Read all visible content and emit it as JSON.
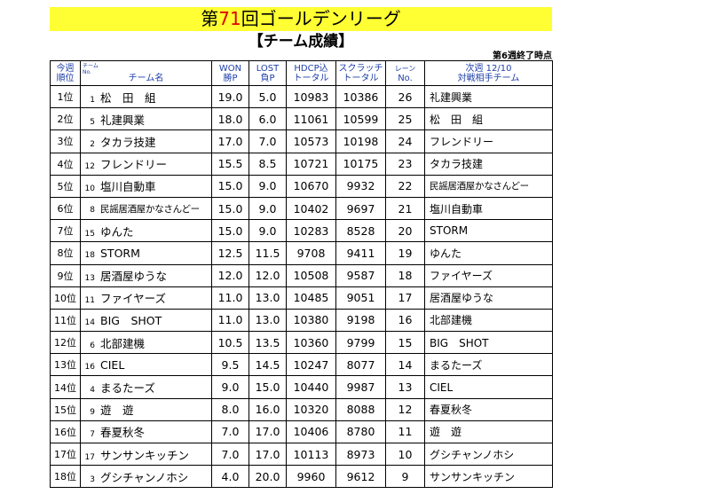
{
  "title": {
    "prefix": "第",
    "number": "71",
    "suffix": "回ゴールデンリーグ"
  },
  "subtitle": "【チーム成績】",
  "as_of": "第6週終了時点",
  "headers": {
    "rank_line1": "今週",
    "rank_line2": "順位",
    "team_small1": "チーム",
    "team_small2": "No.",
    "team_main": "チーム名",
    "won_line1": "WON",
    "won_line2": "勝P",
    "lost_line1": "LOST",
    "lost_line2": "負P",
    "hdcp_line1": "HDCP込",
    "hdcp_line2": "トータル",
    "scratch_line1": "スクラッチ",
    "scratch_line2": "トータル",
    "lane_line1": "レーン",
    "lane_line2": "No.",
    "next_line1": "次週 12/10",
    "next_line2": "対戦相手チーム"
  },
  "rows": [
    {
      "rank": "1位",
      "no": "1",
      "team": "松　田　組",
      "won": "19.0",
      "lost": "5.0",
      "hdcp": "10983",
      "scratch": "10386",
      "lane": "26",
      "opponent": "礼建興業"
    },
    {
      "rank": "2位",
      "no": "5",
      "team": "礼建興業",
      "won": "18.0",
      "lost": "6.0",
      "hdcp": "11061",
      "scratch": "10599",
      "lane": "25",
      "opponent": "松　田　組"
    },
    {
      "rank": "3位",
      "no": "2",
      "team": "タカラ技建",
      "won": "17.0",
      "lost": "7.0",
      "hdcp": "10573",
      "scratch": "10198",
      "lane": "24",
      "opponent": "フレンドリー"
    },
    {
      "rank": "4位",
      "no": "12",
      "team": "フレンドリー",
      "won": "15.5",
      "lost": "8.5",
      "hdcp": "10721",
      "scratch": "10175",
      "lane": "23",
      "opponent": "タカラ技建"
    },
    {
      "rank": "5位",
      "no": "10",
      "team": "塩川自動車",
      "won": "15.0",
      "lost": "9.0",
      "hdcp": "10670",
      "scratch": "9932",
      "lane": "22",
      "opponent": "民謡居酒屋かなさんどー"
    },
    {
      "rank": "6位",
      "no": "8",
      "team": "民謡居酒屋かなさんどー",
      "won": "15.0",
      "lost": "9.0",
      "hdcp": "10402",
      "scratch": "9697",
      "lane": "21",
      "opponent": "塩川自動車"
    },
    {
      "rank": "7位",
      "no": "15",
      "team": "ゆんた",
      "won": "15.0",
      "lost": "9.0",
      "hdcp": "10283",
      "scratch": "8528",
      "lane": "20",
      "opponent": "STORM"
    },
    {
      "rank": "8位",
      "no": "18",
      "team": "STORM",
      "won": "12.5",
      "lost": "11.5",
      "hdcp": "9708",
      "scratch": "9411",
      "lane": "19",
      "opponent": "ゆんた"
    },
    {
      "rank": "9位",
      "no": "13",
      "team": "居酒屋ゆうな",
      "won": "12.0",
      "lost": "12.0",
      "hdcp": "10508",
      "scratch": "9587",
      "lane": "18",
      "opponent": "ファイヤーズ"
    },
    {
      "rank": "10位",
      "no": "11",
      "team": "ファイヤーズ",
      "won": "11.0",
      "lost": "13.0",
      "hdcp": "10485",
      "scratch": "9051",
      "lane": "17",
      "opponent": "居酒屋ゆうな"
    },
    {
      "rank": "11位",
      "no": "14",
      "team": "BIG　SHOT",
      "won": "11.0",
      "lost": "13.0",
      "hdcp": "10380",
      "scratch": "9198",
      "lane": "16",
      "opponent": "北部建機"
    },
    {
      "rank": "12位",
      "no": "6",
      "team": "北部建機",
      "won": "10.5",
      "lost": "13.5",
      "hdcp": "10360",
      "scratch": "9799",
      "lane": "15",
      "opponent": "BIG　SHOT"
    },
    {
      "rank": "13位",
      "no": "16",
      "team": "CIEL",
      "won": "9.5",
      "lost": "14.5",
      "hdcp": "10247",
      "scratch": "8077",
      "lane": "14",
      "opponent": "まるたーズ"
    },
    {
      "rank": "14位",
      "no": "4",
      "team": "まるたーズ",
      "won": "9.0",
      "lost": "15.0",
      "hdcp": "10440",
      "scratch": "9987",
      "lane": "13",
      "opponent": "CIEL"
    },
    {
      "rank": "15位",
      "no": "9",
      "team": "遊　遊",
      "won": "8.0",
      "lost": "16.0",
      "hdcp": "10320",
      "scratch": "8088",
      "lane": "12",
      "opponent": "春夏秋冬"
    },
    {
      "rank": "16位",
      "no": "7",
      "team": "春夏秋冬",
      "won": "7.0",
      "lost": "17.0",
      "hdcp": "10406",
      "scratch": "8780",
      "lane": "11",
      "opponent": "遊　遊"
    },
    {
      "rank": "17位",
      "no": "17",
      "team": "サンサンキッチン",
      "won": "7.0",
      "lost": "17.0",
      "hdcp": "10113",
      "scratch": "8973",
      "lane": "10",
      "opponent": "グシチャンノホシ"
    },
    {
      "rank": "18位",
      "no": "3",
      "team": "グシチャンノホシ",
      "won": "4.0",
      "lost": "20.0",
      "hdcp": "9960",
      "scratch": "9612",
      "lane": "9",
      "opponent": "サンサンキッチン"
    }
  ],
  "colors": {
    "title_bg": "#ffff33",
    "title_accent": "#e00000",
    "header_blue": "#1f3fa8"
  }
}
